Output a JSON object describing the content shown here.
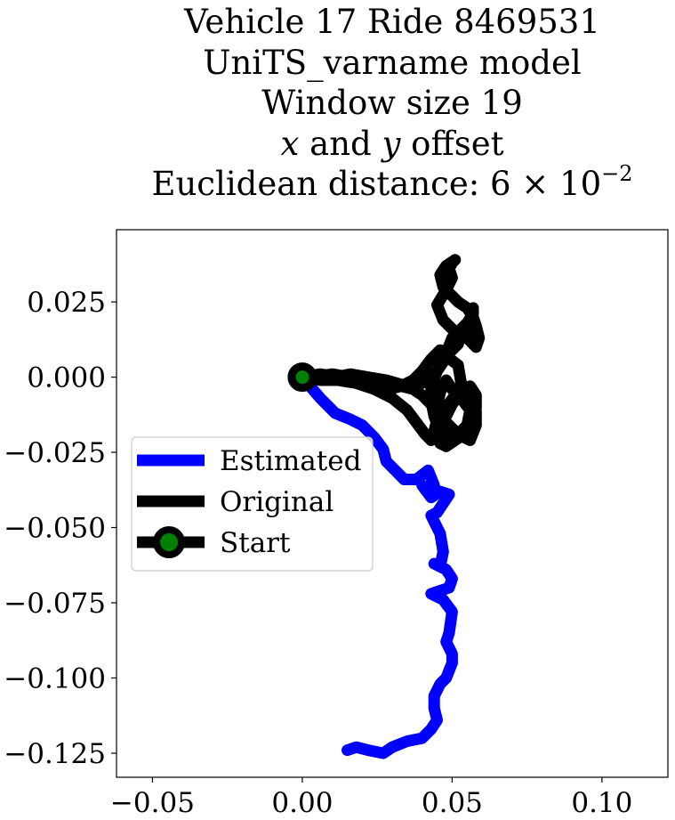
{
  "title": {
    "line1": "Vehicle 17 Ride 8469531",
    "line2": "UniTS_varname model",
    "line3": "Window size 19",
    "line4_x": "x",
    "line4_and": " and ",
    "line4_y": "y",
    "line4_rest": " offset",
    "line5_prefix": "Euclidean distance: 6 × 10",
    "line5_exp": "−2"
  },
  "chart_data": {
    "type": "line",
    "xlim": [
      -0.062,
      0.122
    ],
    "ylim": [
      -0.133,
      0.049
    ],
    "xticks": [
      -0.05,
      0.0,
      0.05,
      0.1
    ],
    "xtick_labels": [
      "−0.05",
      "0.00",
      "0.05",
      "0.10"
    ],
    "yticks": [
      0.025,
      0.0,
      -0.025,
      -0.05,
      -0.075,
      -0.1,
      -0.125
    ],
    "ytick_labels": [
      "0.025",
      "0.000",
      "−0.025",
      "−0.050",
      "−0.075",
      "−0.100",
      "−0.125"
    ],
    "grid": false,
    "legend_position": "center-left",
    "series": [
      {
        "name": "Estimated",
        "color": "#0000ff",
        "x": [
          0.0,
          0.006,
          0.011,
          0.016,
          0.02,
          0.024,
          0.027,
          0.028,
          0.031,
          0.034,
          0.038,
          0.042,
          0.044,
          0.043,
          0.04,
          0.043,
          0.046,
          0.049,
          0.045,
          0.043,
          0.046,
          0.047,
          0.046,
          0.044,
          0.048,
          0.05,
          0.049,
          0.043,
          0.047,
          0.05,
          0.049,
          0.048,
          0.05,
          0.05,
          0.048,
          0.046,
          0.044,
          0.044,
          0.045,
          0.043,
          0.04,
          0.035,
          0.03,
          0.027,
          0.022,
          0.018,
          0.015
        ],
        "y": [
          0.0,
          -0.007,
          -0.012,
          -0.014,
          -0.016,
          -0.02,
          -0.024,
          -0.028,
          -0.031,
          -0.034,
          -0.034,
          -0.031,
          -0.036,
          -0.038,
          -0.036,
          -0.04,
          -0.038,
          -0.039,
          -0.045,
          -0.046,
          -0.052,
          -0.058,
          -0.063,
          -0.062,
          -0.064,
          -0.067,
          -0.07,
          -0.072,
          -0.074,
          -0.078,
          -0.085,
          -0.088,
          -0.092,
          -0.095,
          -0.1,
          -0.102,
          -0.106,
          -0.11,
          -0.114,
          -0.117,
          -0.12,
          -0.121,
          -0.123,
          -0.125,
          -0.124,
          -0.123,
          -0.124
        ]
      },
      {
        "name": "Original",
        "color": "#000000",
        "x": [
          0.0,
          0.006,
          0.011,
          0.016,
          0.022,
          0.028,
          0.035,
          0.04,
          0.045,
          0.048,
          0.05,
          0.052,
          0.055,
          0.057,
          0.057,
          0.056,
          0.056,
          0.053,
          0.05,
          0.047,
          0.045,
          0.048,
          0.05,
          0.049,
          0.05,
          0.051,
          0.048,
          0.046,
          0.047,
          0.05,
          0.052,
          0.055,
          0.057,
          0.058,
          0.059,
          0.058,
          0.055,
          0.053,
          0.052,
          0.049,
          0.045,
          0.043,
          0.043,
          0.044,
          0.046,
          0.049,
          0.052,
          0.055,
          0.056,
          0.053,
          0.05,
          0.048,
          0.046,
          0.045,
          0.048,
          0.052,
          0.056,
          0.058,
          0.058,
          0.055,
          0.053,
          0.052,
          0.048,
          0.046,
          0.043,
          0.04,
          0.037,
          0.033,
          0.029,
          0.024,
          0.018,
          0.012,
          0.006,
          0.0,
          0.006,
          0.012,
          0.018,
          0.024,
          0.03,
          0.035,
          0.038,
          0.041,
          0.043,
          0.044,
          0.046,
          0.048,
          0.05,
          0.053,
          0.056,
          0.058,
          0.058,
          0.056,
          0.054,
          0.051,
          0.048,
          0.046,
          0.044,
          0.045,
          0.048,
          0.051,
          0.054,
          0.056,
          0.057,
          0.056,
          0.054,
          0.051,
          0.049,
          0.047,
          0.045,
          0.043,
          0.04,
          0.037,
          0.033,
          0.028,
          0.022,
          0.016,
          0.01,
          0.004,
          0.0
        ],
        "y": [
          0.0,
          0.001,
          0.0,
          0.001,
          0.0,
          -0.001,
          -0.003,
          -0.002,
          0.002,
          0.008,
          0.013,
          0.015,
          0.018,
          0.021,
          0.023,
          0.019,
          0.015,
          0.013,
          0.016,
          0.019,
          0.024,
          0.029,
          0.033,
          0.036,
          0.038,
          0.039,
          0.037,
          0.034,
          0.03,
          0.027,
          0.025,
          0.023,
          0.02,
          0.017,
          0.013,
          0.01,
          0.013,
          0.015,
          0.011,
          0.008,
          0.002,
          -0.003,
          -0.008,
          -0.013,
          -0.018,
          -0.021,
          -0.019,
          -0.016,
          -0.011,
          -0.007,
          -0.004,
          -0.001,
          -0.005,
          -0.01,
          -0.015,
          -0.019,
          -0.021,
          -0.016,
          -0.011,
          -0.006,
          -0.002,
          0.004,
          0.007,
          0.009,
          0.006,
          0.002,
          -0.001,
          -0.003,
          -0.004,
          -0.003,
          -0.001,
          0.0,
          0.001,
          0.0,
          -0.001,
          -0.001,
          -0.002,
          -0.004,
          -0.007,
          -0.011,
          -0.015,
          -0.019,
          -0.021,
          -0.02,
          -0.017,
          -0.013,
          -0.009,
          -0.005,
          -0.003,
          -0.006,
          -0.01,
          -0.014,
          -0.018,
          -0.021,
          -0.023,
          -0.022,
          -0.018,
          -0.014,
          -0.01,
          -0.006,
          -0.003,
          -0.007,
          -0.012,
          -0.016,
          -0.019,
          -0.021,
          -0.02,
          -0.017,
          -0.013,
          -0.009,
          -0.006,
          -0.004,
          -0.003,
          -0.002,
          -0.001,
          0.0,
          0.001,
          0.0,
          0.0
        ]
      }
    ],
    "start": {
      "name": "Start",
      "x": 0.0,
      "y": 0.0,
      "edge_color": "#000000",
      "face_color": "#008000"
    }
  }
}
